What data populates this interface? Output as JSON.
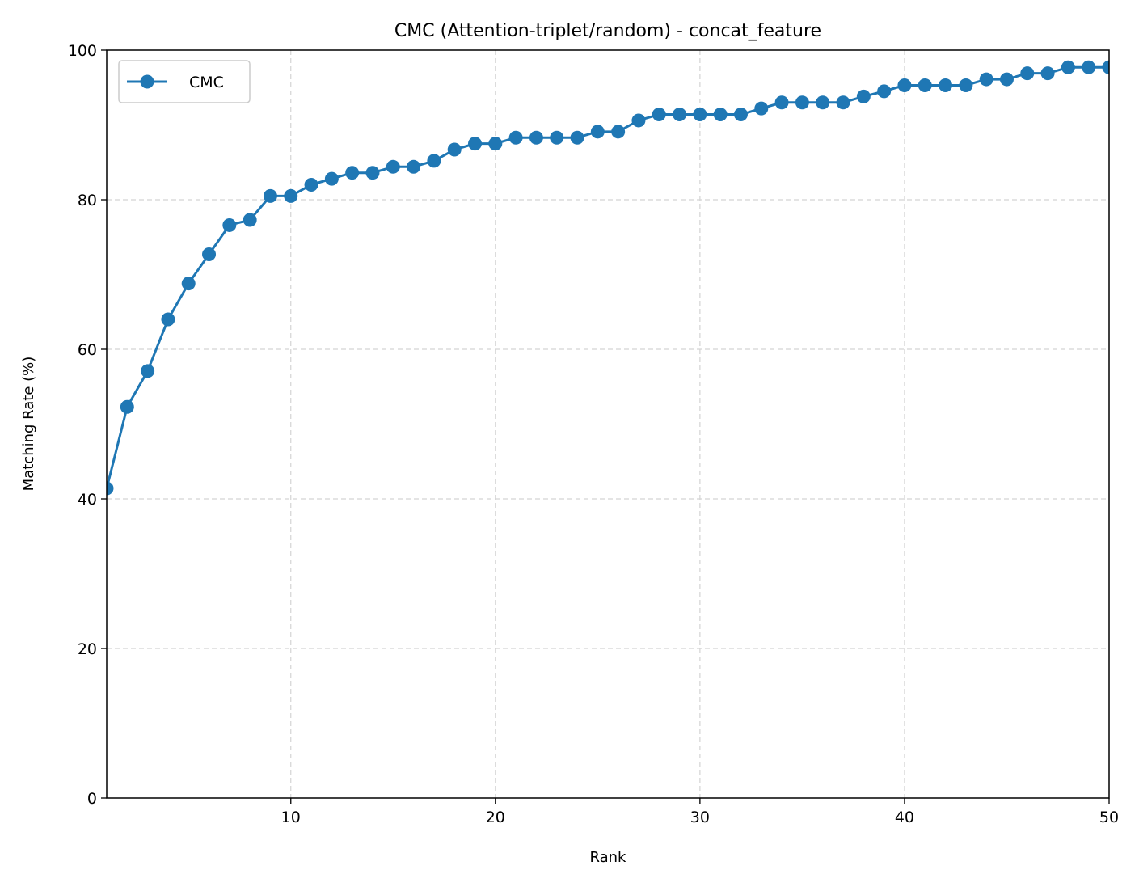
{
  "chart_data": {
    "type": "line",
    "title": "CMC (Attention-triplet/random) - concat_feature",
    "xlabel": "Rank",
    "ylabel": "Matching Rate (%)",
    "xlim": [
      1,
      50
    ],
    "ylim": [
      0,
      100
    ],
    "x_ticks": [
      10,
      20,
      30,
      40,
      50
    ],
    "y_ticks": [
      0,
      20,
      40,
      60,
      80,
      100
    ],
    "grid": true,
    "legend_position": "top-left",
    "series": [
      {
        "name": "CMC",
        "color": "#1f77b4",
        "marker": "circle",
        "x": [
          1,
          2,
          3,
          4,
          5,
          6,
          7,
          8,
          9,
          10,
          11,
          12,
          13,
          14,
          15,
          16,
          17,
          18,
          19,
          20,
          21,
          22,
          23,
          24,
          25,
          26,
          27,
          28,
          29,
          30,
          31,
          32,
          33,
          34,
          35,
          36,
          37,
          38,
          39,
          40,
          41,
          42,
          43,
          44,
          45,
          46,
          47,
          48,
          49,
          50
        ],
        "values": [
          41.4,
          52.3,
          57.1,
          64.0,
          68.8,
          72.7,
          76.6,
          77.3,
          80.5,
          80.5,
          82.0,
          82.8,
          83.6,
          83.6,
          84.4,
          84.4,
          85.2,
          86.7,
          87.5,
          87.5,
          88.3,
          88.3,
          88.3,
          88.3,
          89.1,
          89.1,
          90.6,
          91.4,
          91.4,
          91.4,
          91.4,
          91.4,
          92.2,
          93.0,
          93.0,
          93.0,
          93.0,
          93.8,
          94.5,
          95.3,
          95.3,
          95.3,
          95.3,
          96.1,
          96.1,
          96.9,
          96.9,
          97.7,
          97.7,
          97.7
        ]
      }
    ]
  }
}
